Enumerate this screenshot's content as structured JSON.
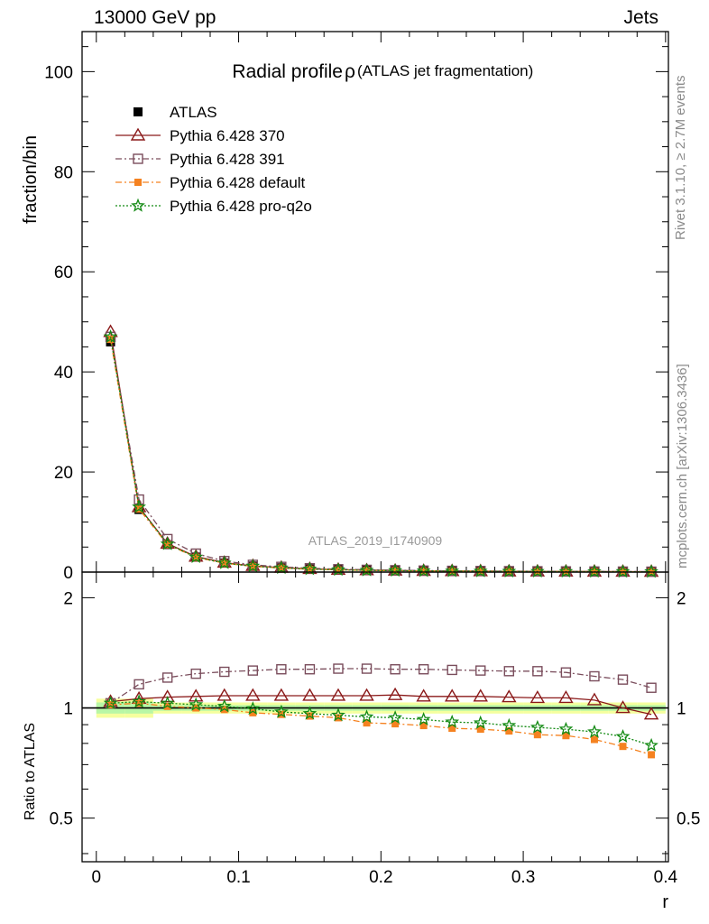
{
  "header": {
    "left": "13000 GeV pp",
    "right": "Jets"
  },
  "side_labels": {
    "rivet": "Rivet 3.1.10, ≥ 2.7M events",
    "mcplots": "mcplots.cern.ch [arXiv:1306.3436]"
  },
  "chart_data": {
    "type": "scatter",
    "title": "Radial profile",
    "title_symbol": "ρ",
    "subtitle": "(ATLAS jet fragmentation)",
    "watermark": "ATLAS_2019_I1740909",
    "xlabel": "r",
    "ylabel": "fraction/bin",
    "ratio_ylabel": "Ratio to ATLAS",
    "xlim": [
      -0.01,
      0.402
    ],
    "ylim": [
      0,
      108
    ],
    "ratio_ylim": [
      0.38,
      2.35
    ],
    "ratio_scale": "log",
    "x_ticks": [
      "0",
      "0.1",
      "0.2",
      "0.3",
      "0.4"
    ],
    "y_ticks": [
      "0",
      "20",
      "40",
      "60",
      "80",
      "100"
    ],
    "ratio_y_ticks": [
      "0.5",
      "1",
      "2"
    ],
    "legend_position": "top-left",
    "x": [
      0.01,
      0.03,
      0.05,
      0.07,
      0.09,
      0.11,
      0.13,
      0.15,
      0.17,
      0.19,
      0.21,
      0.23,
      0.25,
      0.27,
      0.29,
      0.31,
      0.33,
      0.35,
      0.37,
      0.39
    ],
    "series": [
      {
        "name": "ATLAS",
        "color": "#000000",
        "marker": "filled-square",
        "values": [
          46.0,
          12.5,
          5.5,
          3.0,
          1.8,
          1.2,
          0.85,
          0.62,
          0.47,
          0.37,
          0.3,
          0.25,
          0.21,
          0.18,
          0.155,
          0.135,
          0.12,
          0.105,
          0.095,
          0.085
        ],
        "ratio": [
          1,
          1,
          1,
          1,
          1,
          1,
          1,
          1,
          1,
          1,
          1,
          1,
          1,
          1,
          1,
          1,
          1,
          1,
          1,
          1
        ]
      },
      {
        "name": "Pythia 6.428 370",
        "color": "#8b1a1a",
        "marker": "open-triangle",
        "linestyle": "solid",
        "values": [
          48.0,
          13.0,
          5.7,
          3.1,
          1.9,
          1.25,
          0.9,
          0.65,
          0.49,
          0.39,
          0.32,
          0.26,
          0.22,
          0.19,
          0.16,
          0.14,
          0.125,
          0.108,
          0.095,
          0.082
        ],
        "ratio": [
          1.04,
          1.06,
          1.07,
          1.075,
          1.08,
          1.08,
          1.08,
          1.08,
          1.08,
          1.08,
          1.085,
          1.075,
          1.075,
          1.075,
          1.07,
          1.065,
          1.065,
          1.05,
          1.0,
          0.96
        ]
      },
      {
        "name": "Pythia 6.428 391",
        "color": "#7a4d5c",
        "marker": "open-square",
        "linestyle": "dashdot",
        "values": [
          47.0,
          14.5,
          6.6,
          3.7,
          2.2,
          1.45,
          1.05,
          0.77,
          0.58,
          0.46,
          0.38,
          0.31,
          0.26,
          0.22,
          0.19,
          0.17,
          0.15,
          0.128,
          0.113,
          0.095
        ],
        "ratio": [
          1.03,
          1.16,
          1.21,
          1.24,
          1.255,
          1.265,
          1.275,
          1.275,
          1.28,
          1.28,
          1.275,
          1.275,
          1.27,
          1.265,
          1.26,
          1.26,
          1.25,
          1.22,
          1.195,
          1.135
        ]
      },
      {
        "name": "Pythia 6.428 default",
        "color": "#f58220",
        "marker": "filled-square",
        "linestyle": "dashdot",
        "values": [
          46.5,
          12.6,
          5.5,
          2.95,
          1.75,
          1.15,
          0.8,
          0.57,
          0.43,
          0.33,
          0.27,
          0.22,
          0.18,
          0.155,
          0.13,
          0.113,
          0.1,
          0.085,
          0.073,
          0.063
        ],
        "ratio": [
          1.02,
          1.03,
          1.01,
          1.0,
          0.99,
          0.97,
          0.96,
          0.95,
          0.94,
          0.91,
          0.905,
          0.895,
          0.88,
          0.875,
          0.865,
          0.845,
          0.84,
          0.82,
          0.785,
          0.745
        ]
      },
      {
        "name": "Pythia 6.428 pro-q2o",
        "color": "#138a13",
        "marker": "open-star",
        "linestyle": "dotted",
        "values": [
          47.0,
          13.0,
          5.6,
          3.0,
          1.8,
          1.18,
          0.83,
          0.6,
          0.45,
          0.35,
          0.28,
          0.23,
          0.19,
          0.165,
          0.14,
          0.122,
          0.107,
          0.092,
          0.08,
          0.069
        ],
        "ratio": [
          1.03,
          1.04,
          1.03,
          1.02,
          1.01,
          0.995,
          0.975,
          0.965,
          0.955,
          0.945,
          0.94,
          0.93,
          0.915,
          0.91,
          0.895,
          0.885,
          0.875,
          0.86,
          0.835,
          0.79
        ]
      }
    ]
  }
}
